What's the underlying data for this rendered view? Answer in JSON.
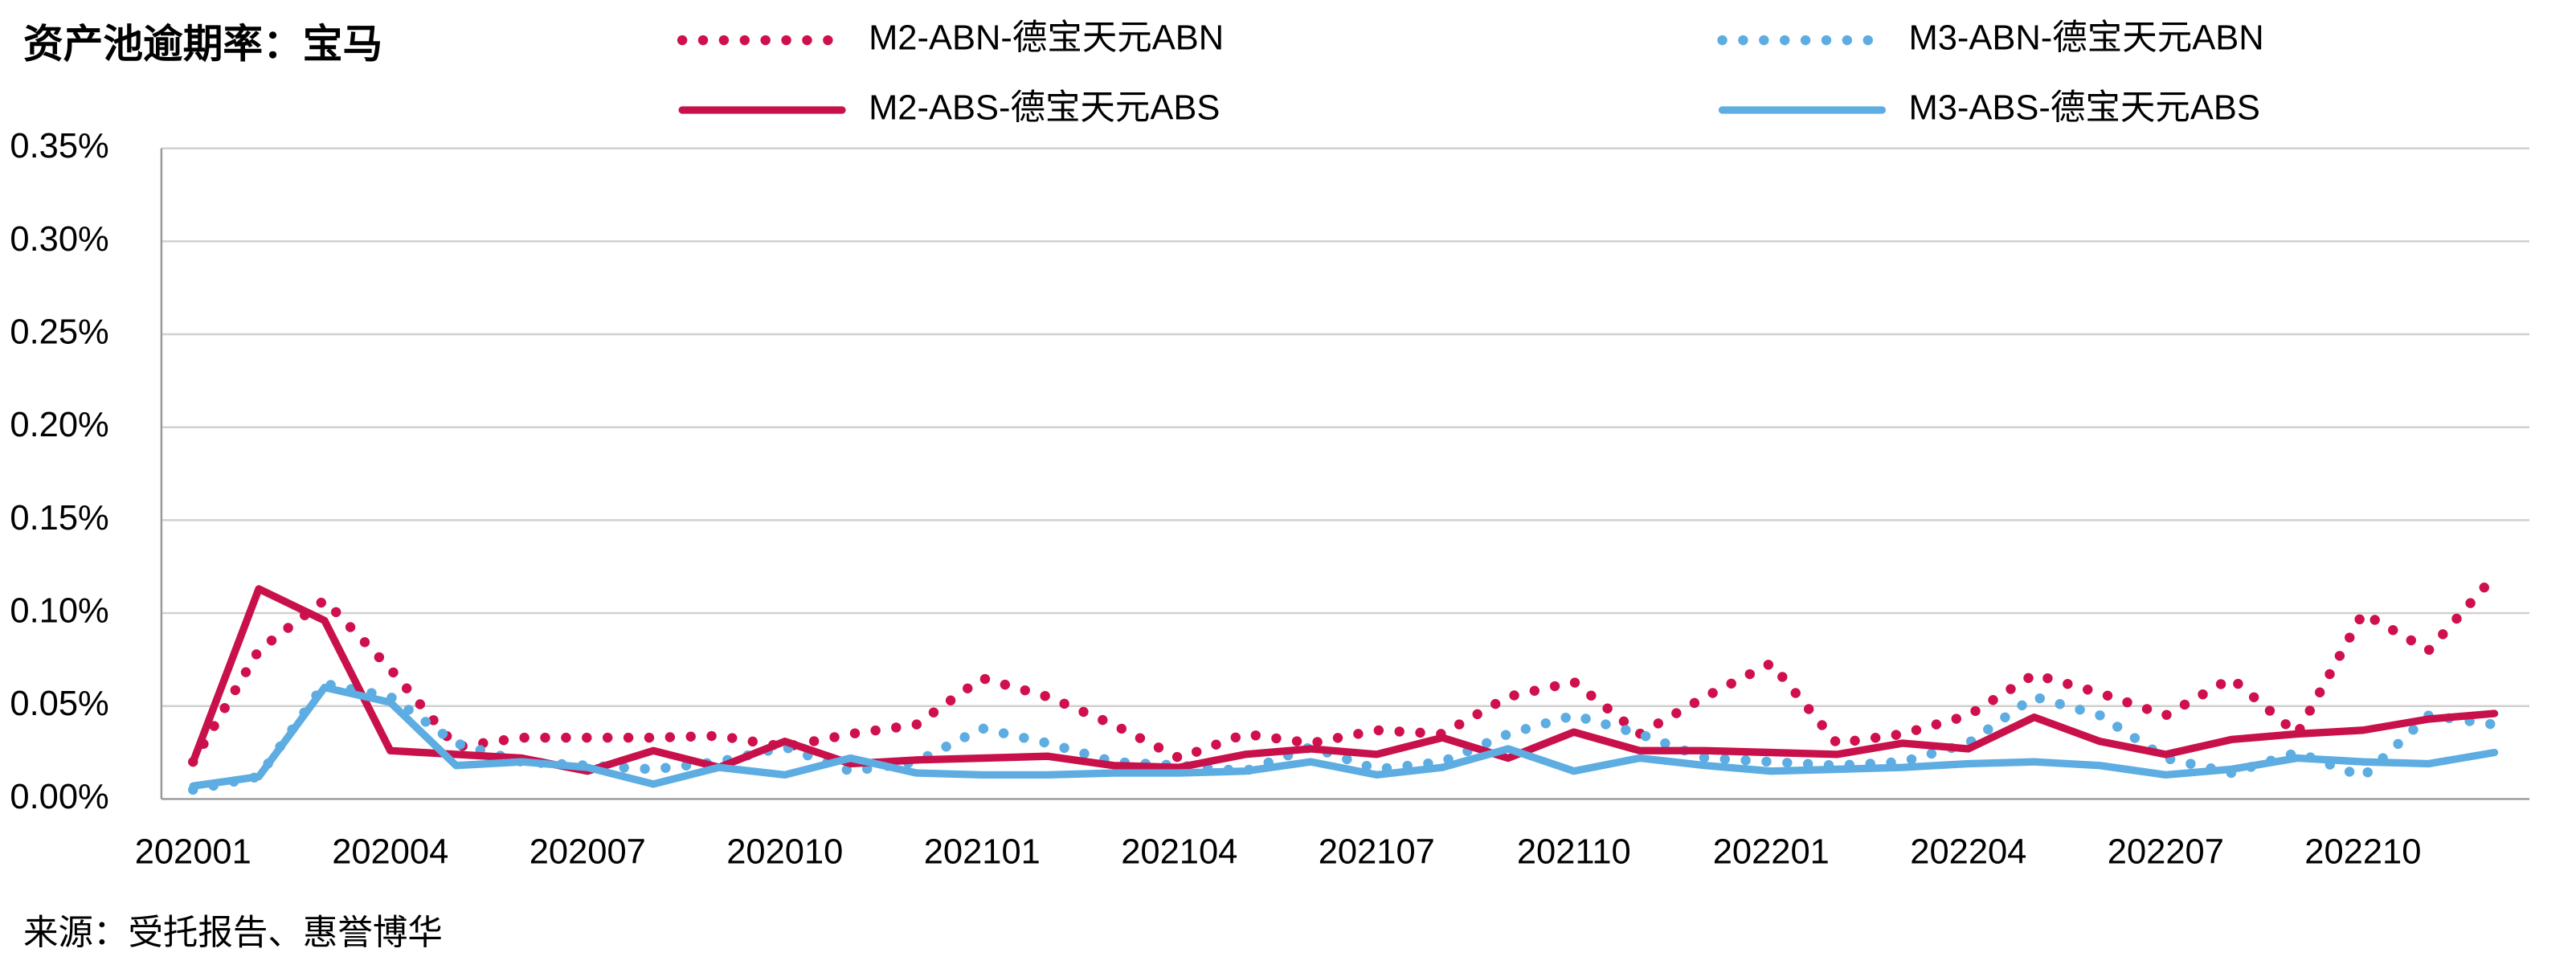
{
  "chart_data": {
    "type": "line",
    "title": "资产池逾期率：宝马",
    "source": "来源：受托报告、惠誉博华",
    "categories": [
      "202001",
      null,
      null,
      "202004",
      null,
      null,
      "202007",
      null,
      null,
      "202010",
      null,
      null,
      "202101",
      null,
      null,
      "202104",
      null,
      null,
      "202107",
      null,
      null,
      "202110",
      null,
      null,
      "202201",
      null,
      null,
      "202204",
      null,
      null,
      "202207",
      null,
      null,
      "202210",
      null,
      null
    ],
    "ylim": [
      0,
      0.35
    ],
    "yticks": [
      {
        "value": 0,
        "label": "0.00%"
      },
      {
        "value": 0.05,
        "label": "0.05%"
      },
      {
        "value": 0.1,
        "label": "0.10%"
      },
      {
        "value": 0.15,
        "label": "0.15%"
      },
      {
        "value": 0.2,
        "label": "0.20%"
      },
      {
        "value": 0.25,
        "label": "0.25%"
      },
      {
        "value": 0.3,
        "label": "0.30%"
      },
      {
        "value": 0.35,
        "label": "0.35%"
      }
    ],
    "grid": true,
    "legend": "top",
    "series": [
      {
        "name": "M2-ABN-德宝天元ABN",
        "color": "#d0104c",
        "style": "dotted",
        "values": [
          0.02,
          0.08,
          0.107,
          0.07,
          0.028,
          0.033,
          0.033,
          0.033,
          0.034,
          0.028,
          0.035,
          0.04,
          0.065,
          0.055,
          0.04,
          0.022,
          0.035,
          0.03,
          0.037,
          0.035,
          0.055,
          0.063,
          0.035,
          0.055,
          0.073,
          0.03,
          0.035,
          0.045,
          0.067,
          0.057,
          0.045,
          0.065,
          0.035,
          0.1,
          0.08,
          0.12
        ]
      },
      {
        "name": "M3-ABN-德宝天元ABN",
        "color": "#5dade2",
        "style": "dotted",
        "values": [
          0.005,
          0.012,
          0.062,
          0.055,
          0.03,
          0.02,
          0.018,
          0.016,
          0.02,
          0.028,
          0.015,
          0.02,
          0.038,
          0.03,
          0.02,
          0.018,
          0.015,
          0.028,
          0.016,
          0.02,
          0.035,
          0.045,
          0.035,
          0.022,
          0.02,
          0.018,
          0.02,
          0.03,
          0.055,
          0.045,
          0.022,
          0.014,
          0.025,
          0.012,
          0.045,
          0.04
        ]
      },
      {
        "name": "M2-ABS-德宝天元ABS",
        "color": "#c8114b",
        "style": "solid",
        "values": [
          0.02,
          0.113,
          0.096,
          0.026,
          0.024,
          0.022,
          0.015,
          0.026,
          0.017,
          0.031,
          0.019,
          0.021,
          0.022,
          0.023,
          0.018,
          0.017,
          0.024,
          0.027,
          0.024,
          0.033,
          0.022,
          0.036,
          0.026,
          0.026,
          0.025,
          0.024,
          0.03,
          0.027,
          0.044,
          0.031,
          0.024,
          0.032,
          0.035,
          0.037,
          0.043,
          0.046
        ]
      },
      {
        "name": "M3-ABS-德宝天元ABS",
        "color": "#5dade2",
        "style": "solid",
        "values": [
          0.007,
          0.012,
          0.06,
          0.052,
          0.018,
          0.02,
          0.017,
          0.008,
          0.017,
          0.013,
          0.022,
          0.014,
          0.013,
          0.013,
          0.014,
          0.014,
          0.015,
          0.02,
          0.013,
          0.017,
          0.027,
          0.015,
          0.022,
          0.018,
          0.015,
          0.016,
          0.017,
          0.019,
          0.02,
          0.018,
          0.013,
          0.016,
          0.022,
          0.02,
          0.019,
          0.025
        ]
      }
    ]
  }
}
